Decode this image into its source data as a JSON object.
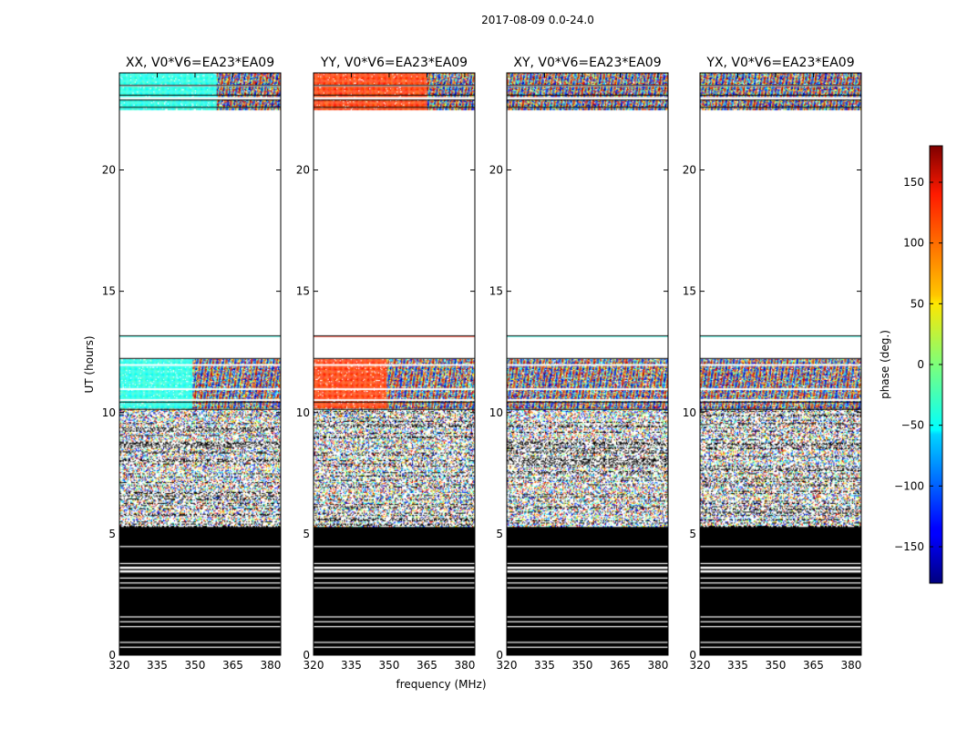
{
  "chart_data": {
    "type": "heatmap",
    "suptitle": "2017-08-09 0.0-24.0",
    "xlabel": "frequency (MHz)",
    "ylabel": "UT (hours)",
    "xlim": [
      320,
      384
    ],
    "ylim": [
      0,
      24
    ],
    "xticks": [
      "320",
      "335",
      "350",
      "365",
      "380"
    ],
    "xtick_values": [
      320,
      335,
      350,
      365,
      380
    ],
    "yticks": [
      "0",
      "5",
      "10",
      "15",
      "20"
    ],
    "ytick_values": [
      0,
      5,
      10,
      15,
      20
    ],
    "panels": [
      {
        "title": "XX, V0*V6=EA23*EA09",
        "pol": "XX"
      },
      {
        "title": "YY, V0*V6=EA23*EA09",
        "pol": "YY"
      },
      {
        "title": "XY, V0*V6=EA23*EA09",
        "pol": "XY"
      },
      {
        "title": "YX, V0*V6=EA23*EA09",
        "pol": "YX"
      }
    ],
    "time_segments": [
      {
        "start": 0.0,
        "end": 5.3,
        "content": "flagged (black) with thin white gaps"
      },
      {
        "start": 5.3,
        "end": 10.2,
        "content": "noisy phase, partially flagged"
      },
      {
        "start": 10.2,
        "end": 12.2,
        "content": "phase fringes / noise"
      },
      {
        "start": 12.2,
        "end": 13.1,
        "content": "no data"
      },
      {
        "start": 13.1,
        "end": 13.2,
        "content": "thin data line"
      },
      {
        "start": 13.2,
        "end": 22.5,
        "content": "no data"
      },
      {
        "start": 22.5,
        "end": 24.0,
        "content": "phase fringes / noise"
      }
    ],
    "colorbar": {
      "label": "phase (deg.)",
      "range": [
        -180,
        180
      ],
      "ticks": [
        "150",
        "100",
        "50",
        "0",
        "−50",
        "−100",
        "−150"
      ],
      "tick_values": [
        150,
        100,
        50,
        0,
        -50,
        -100,
        -150
      ],
      "colormap": "jet"
    }
  }
}
